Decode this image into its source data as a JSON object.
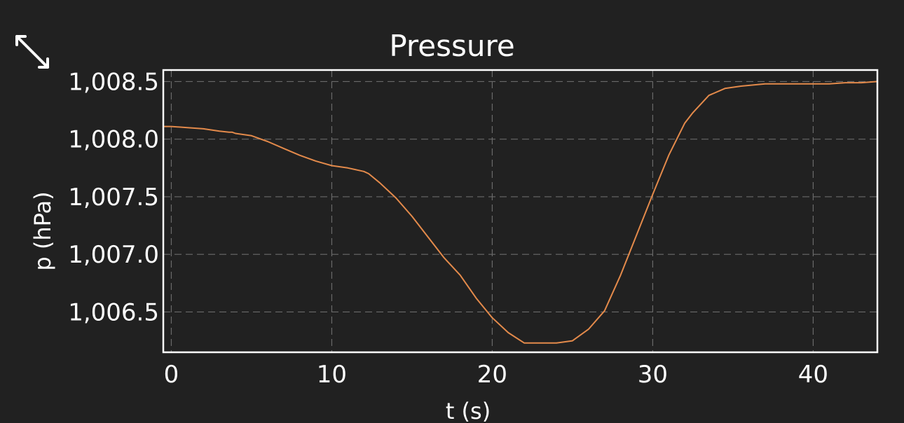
{
  "controls": {
    "expand_icon": "expand-diagonal-arrows-icon"
  },
  "colors": {
    "background": "#212121",
    "frame": "#ffffff",
    "grid": "#6a6a6a",
    "series": "#e38a4b",
    "text": "#ffffff"
  },
  "chart_data": {
    "type": "line",
    "title": "Pressure",
    "xlabel": "t (s)",
    "ylabel": "p (hPa)",
    "xlim": [
      -0.5,
      44
    ],
    "ylim": [
      1006.15,
      1008.6
    ],
    "x_ticks": [
      0,
      10,
      20,
      30,
      40
    ],
    "x_tick_labels": [
      "0",
      "10",
      "20",
      "30",
      "40"
    ],
    "y_ticks": [
      1006.5,
      1007.0,
      1007.5,
      1008.0,
      1008.5
    ],
    "y_tick_labels": [
      "1,006.5",
      "1,007.0",
      "1,007.5",
      "1,008.0",
      "1,008.5"
    ],
    "grid": true,
    "legend": "none",
    "series": [
      {
        "x": [
          -0.5,
          0,
          1,
          2,
          3,
          3.6,
          3.8,
          4,
          5,
          6,
          7,
          8,
          9,
          10,
          11,
          12,
          12.3,
          13,
          14,
          15,
          16,
          17,
          18,
          19,
          20,
          21,
          22,
          23,
          24,
          25,
          26,
          27,
          28,
          29,
          30,
          31,
          32,
          32.5,
          33.5,
          34.5,
          35.5,
          37,
          38,
          39,
          40,
          41,
          42,
          43,
          44
        ],
        "y": [
          1008.11,
          1008.11,
          1008.1,
          1008.09,
          1008.07,
          1008.06,
          1008.06,
          1008.05,
          1008.03,
          1007.98,
          1007.92,
          1007.86,
          1007.81,
          1007.77,
          1007.75,
          1007.72,
          1007.7,
          1007.62,
          1007.49,
          1007.33,
          1007.15,
          1006.97,
          1006.82,
          1006.62,
          1006.45,
          1006.32,
          1006.23,
          1006.23,
          1006.23,
          1006.25,
          1006.35,
          1006.51,
          1006.82,
          1007.17,
          1007.52,
          1007.86,
          1008.14,
          1008.23,
          1008.38,
          1008.44,
          1008.46,
          1008.48,
          1008.48,
          1008.48,
          1008.48,
          1008.48,
          1008.49,
          1008.49,
          1008.5
        ]
      }
    ]
  }
}
